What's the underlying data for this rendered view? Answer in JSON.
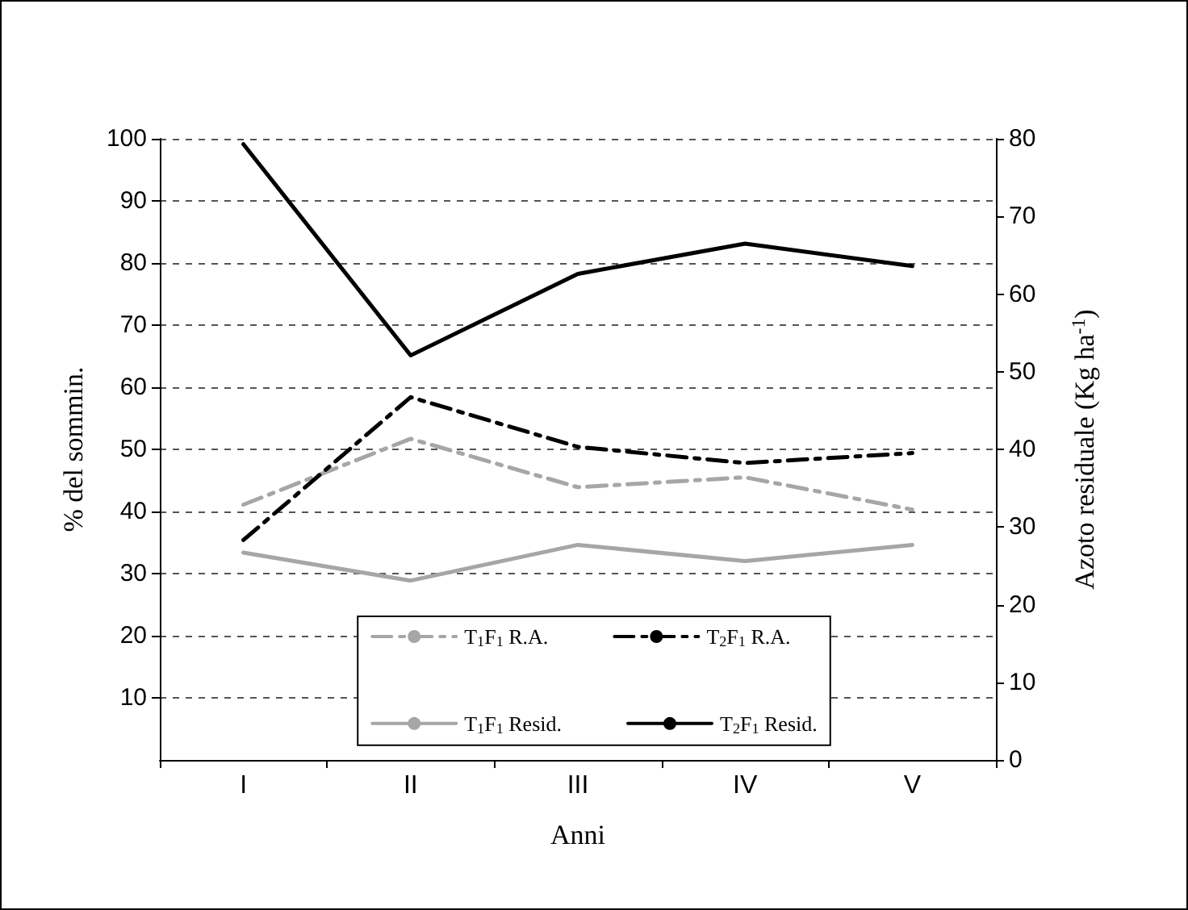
{
  "chart_data": {
    "type": "line",
    "xlabel": "Anni",
    "ylabel": "% del sommin.",
    "y2label": "Azoto residuale (Kg ha$^{-1}$)",
    "categories": [
      "I",
      "II",
      "III",
      "IV",
      "V"
    ],
    "ylim": [
      0,
      100
    ],
    "yticks": [
      10,
      20,
      30,
      40,
      50,
      60,
      70,
      80,
      90,
      100
    ],
    "y2lim": [
      0,
      80
    ],
    "y2ticks": [
      0,
      10,
      20,
      30,
      40,
      50,
      60,
      70,
      80
    ],
    "grid": "y",
    "legend": "bottom",
    "marker": "none",
    "series": [
      {
        "name": "T$_{1}$F$_{1}$ R.A.",
        "color": "#a6a6a6",
        "line_style": "dashed",
        "values": [
          41.1,
          51.7,
          43.9,
          45.5,
          40.3
        ]
      },
      {
        "name": "T$_{2}$F$_{1}$ R.A.",
        "color": "#000000",
        "line_style": "dashed",
        "values": [
          35.4,
          58.4,
          50.4,
          47.8,
          49.4
        ]
      },
      {
        "name": "T$_{1}$F$_{1}$ Resid.",
        "color": "#a6a6a6",
        "line_style": "solid",
        "axis": "y2",
        "values": [
          26.7,
          23.1,
          27.7,
          25.6,
          27.7
        ]
      },
      {
        "name": "T$_{2}$F$_{1}$ Resid.",
        "color": "#000000",
        "line_style": "solid",
        "axis": "y2",
        "values": [
          79.3,
          52.1,
          62.6,
          66.5,
          63.6
        ]
      }
    ]
  }
}
